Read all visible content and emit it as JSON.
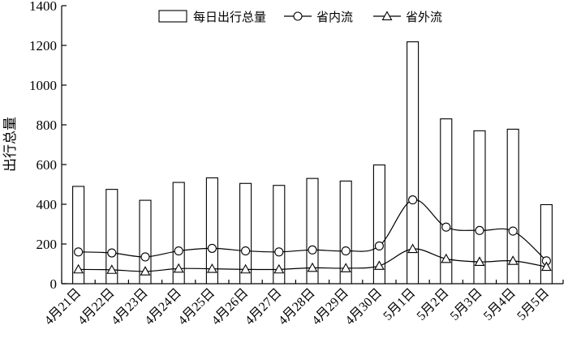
{
  "chart_data": {
    "type": "bar",
    "categories": [
      "4月21日",
      "4月22日",
      "4月23日",
      "4月24日",
      "4月25日",
      "4月26日",
      "4月27日",
      "4月28日",
      "4月29日",
      "4月30日",
      "5月1日",
      "5月2日",
      "5月3日",
      "5月4日",
      "5月5日"
    ],
    "ylabel": "出行总量",
    "xlabel": "",
    "ylim": [
      0,
      1400
    ],
    "yticks": [
      0,
      200,
      400,
      600,
      800,
      1000,
      1200,
      1400
    ],
    "grid": false,
    "legend_position": "top",
    "series": [
      {
        "name": "每日出行总量",
        "type": "bar",
        "values": [
          490,
          475,
          420,
          510,
          533,
          505,
          495,
          530,
          517,
          598,
          1218,
          830,
          770,
          778,
          398
        ]
      },
      {
        "name": "省内流",
        "type": "line",
        "marker": "circle",
        "values": [
          160,
          155,
          135,
          165,
          178,
          165,
          160,
          170,
          165,
          190,
          422,
          285,
          268,
          265,
          115
        ]
      },
      {
        "name": "省外流",
        "type": "line",
        "marker": "triangle",
        "values": [
          72,
          70,
          62,
          76,
          75,
          72,
          72,
          80,
          78,
          90,
          175,
          125,
          110,
          115,
          85
        ]
      }
    ]
  }
}
